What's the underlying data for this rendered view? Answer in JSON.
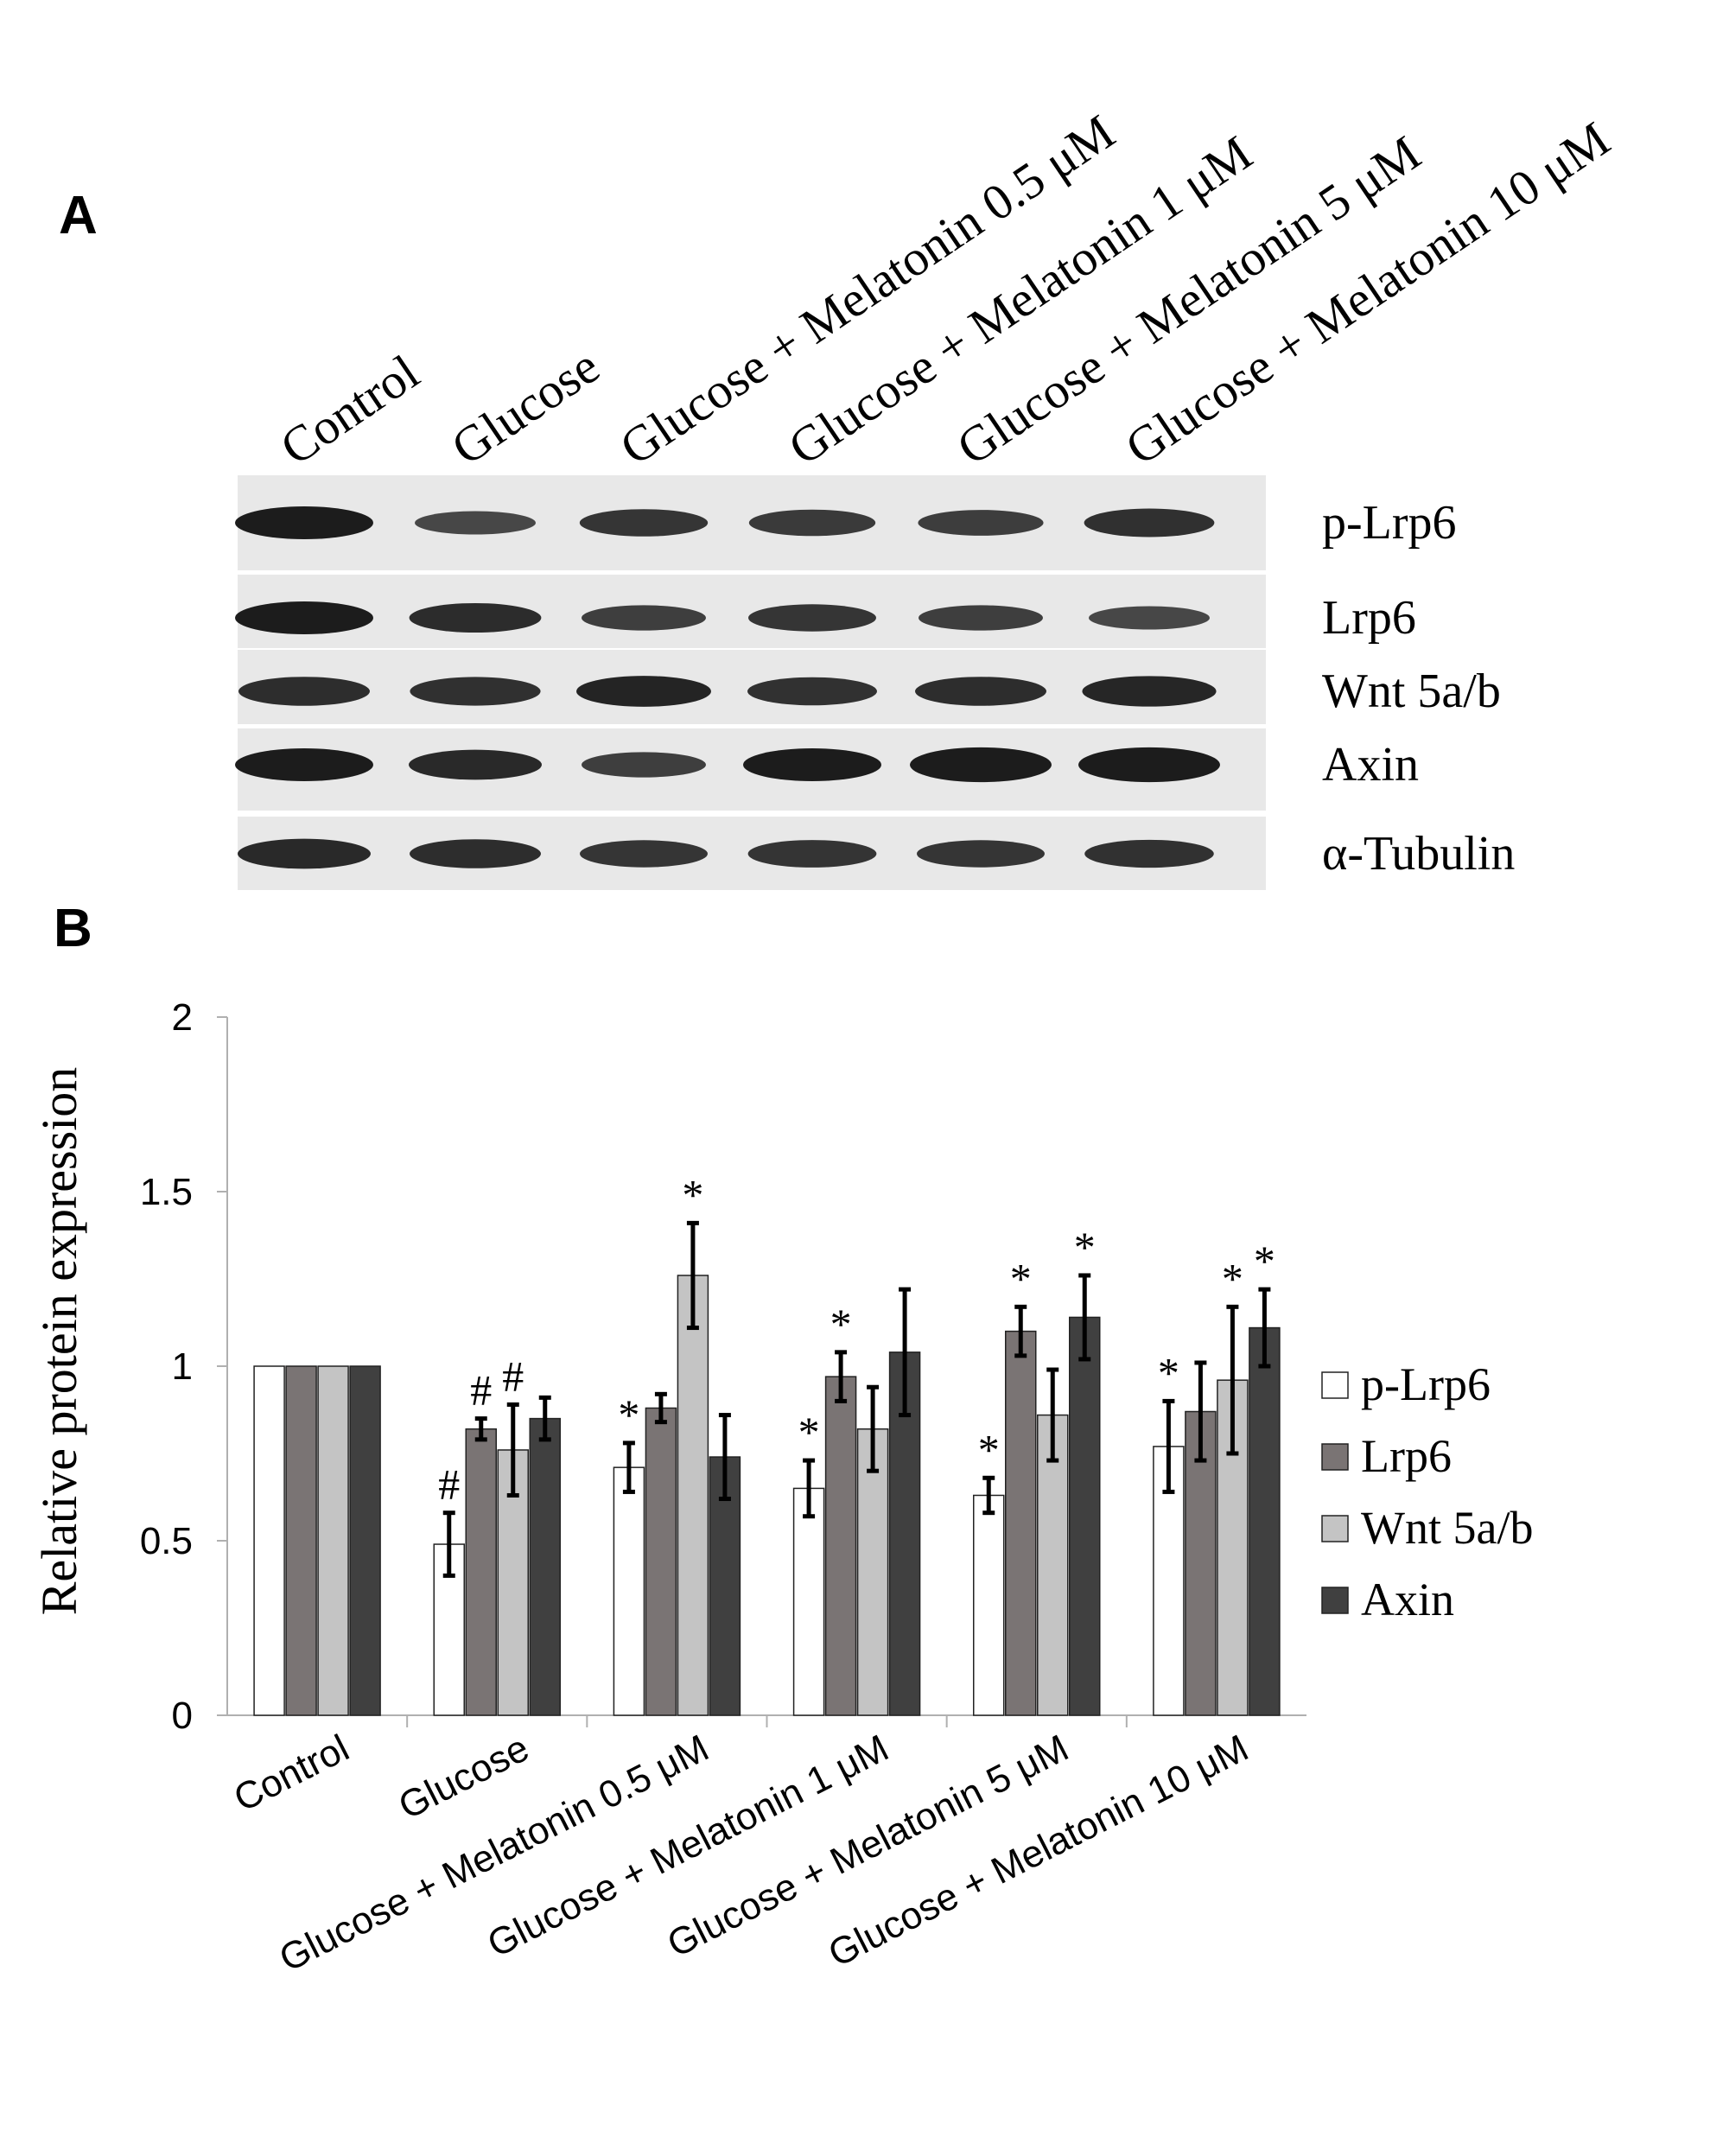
{
  "panels": {
    "a": "A",
    "b": "B"
  },
  "blot": {
    "lanes": [
      "Control",
      "Glucose",
      "Glucose + Melatonin 0.5 μM",
      "Glucose + Melatonin 1 μM",
      "Glucose + Melatonin 5 μM",
      "Glucose + Melatonin 10 μM"
    ],
    "rows": [
      {
        "label": "p-Lrp6",
        "intensity": [
          1.0,
          0.5,
          0.71,
          0.66,
          0.63,
          0.77
        ]
      },
      {
        "label": "Lrp6",
        "intensity": [
          1.0,
          0.82,
          0.6,
          0.7,
          0.6,
          0.5
        ]
      },
      {
        "label": "Wnt 5a/b",
        "intensity": [
          0.8,
          0.78,
          0.9,
          0.75,
          0.8,
          0.88
        ]
      },
      {
        "label": "Axin",
        "intensity": [
          1.0,
          0.85,
          0.6,
          1.0,
          1.1,
          1.1
        ]
      },
      {
        "label": "α-Tubulin",
        "intensity": [
          0.85,
          0.8,
          0.7,
          0.72,
          0.7,
          0.74
        ]
      }
    ]
  },
  "colors": {
    "p-Lrp6": "#ffffff",
    "Lrp6": "#7a7474",
    "Wnt 5a/b": "#c4c4c4",
    "Axin": "#404040",
    "band": "#111111",
    "blot_bg": "#e8e8e8"
  },
  "chart_data": {
    "type": "bar",
    "title": "",
    "xlabel": "",
    "ylabel": "Relative protein expression",
    "ylim": [
      0,
      2
    ],
    "yticks": [
      "0",
      "0.5",
      "1",
      "1.5",
      "2"
    ],
    "legend_position": "right",
    "categories": [
      "Control",
      "Glucose",
      "Glucose + Melatonin 0.5 μM",
      "Glucose + Melatonin 1 μM",
      "Glucose + Melatonin 5 μM",
      "Glucose + Melatonin 10 μM"
    ],
    "series": [
      {
        "name": "p-Lrp6",
        "values": [
          1.0,
          0.49,
          0.71,
          0.65,
          0.63,
          0.77
        ],
        "errors": [
          0,
          0.09,
          0.07,
          0.08,
          0.05,
          0.13
        ],
        "markers": [
          "",
          "#",
          "*",
          "*",
          "*",
          "*"
        ]
      },
      {
        "name": "Lrp6",
        "values": [
          1.0,
          0.82,
          0.88,
          0.97,
          1.1,
          0.87
        ],
        "errors": [
          0,
          0.03,
          0.04,
          0.07,
          0.07,
          0.14
        ],
        "markers": [
          "",
          "#",
          "",
          "*",
          "*",
          ""
        ]
      },
      {
        "name": "Wnt 5a/b",
        "values": [
          1.0,
          0.76,
          1.26,
          0.82,
          0.86,
          0.96
        ],
        "errors": [
          0,
          0.13,
          0.15,
          0.12,
          0.13,
          0.21
        ],
        "markers": [
          "",
          "#",
          "*",
          "",
          "",
          "*"
        ]
      },
      {
        "name": "Axin",
        "values": [
          1.0,
          0.85,
          0.74,
          1.04,
          1.14,
          1.11
        ],
        "errors": [
          0,
          0.06,
          0.12,
          0.18,
          0.12,
          0.11
        ],
        "markers": [
          "",
          "",
          "",
          "",
          "*",
          "*"
        ]
      }
    ]
  }
}
